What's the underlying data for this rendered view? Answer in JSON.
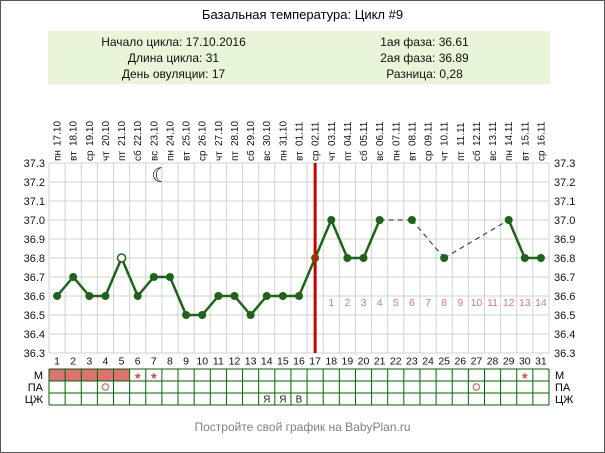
{
  "footer": "Постройте свой график на BabyPlan.ru",
  "info": {
    "left": [
      {
        "label": "Начало цикла:",
        "value": "17.10.2016"
      },
      {
        "label": "Длина цикла:",
        "value": "31"
      },
      {
        "label": "День овуляции:",
        "value": "17"
      }
    ],
    "right": [
      {
        "label": "1ая фаза:",
        "value": "36.61"
      },
      {
        "label": "2ая фаза:",
        "value": "36.89"
      },
      {
        "label": "Разница:",
        "value": "0,28"
      }
    ]
  },
  "colors": {
    "line": "#1b6418",
    "point": "#1b6418",
    "ovulation_point": "#993300",
    "ovulation_line": "#cc0000",
    "dashed_line": "#444444",
    "grid": "#ccd4cc",
    "dpo_text": "#dd7777",
    "m_fill": "#dd7272",
    "star": "#cc5555",
    "pa_circle": "#cc7777",
    "table_border": "#006600",
    "info_bg": "#e9f5d8",
    "axis_text": "#111111",
    "moon": "#111111"
  },
  "chart_data": {
    "type": "line",
    "title": "Базальная температура: Цикл #9",
    "ylabel": "",
    "xlabel": "",
    "ylim": [
      36.3,
      37.3
    ],
    "ytick_step": 0.1,
    "grid": true,
    "ovulation_day": 17,
    "moon": {
      "day": 7.4,
      "symbol": "☾"
    },
    "table_row_labels": [
      "М",
      "ПА",
      "ЦЖ"
    ],
    "days": [
      {
        "num": 1,
        "weekday": "пн",
        "date": "17.10",
        "temp": 36.6,
        "marker": "normal",
        "dpo": null,
        "m_fill": true,
        "m_star": false,
        "pa_circle": false,
        "cj": ""
      },
      {
        "num": 2,
        "weekday": "вт",
        "date": "18.10",
        "temp": 36.7,
        "marker": "normal",
        "dpo": null,
        "m_fill": true,
        "m_star": false,
        "pa_circle": false,
        "cj": ""
      },
      {
        "num": 3,
        "weekday": "ср",
        "date": "19.10",
        "temp": 36.6,
        "marker": "normal",
        "dpo": null,
        "m_fill": true,
        "m_star": false,
        "pa_circle": false,
        "cj": ""
      },
      {
        "num": 4,
        "weekday": "чт",
        "date": "20.10",
        "temp": 36.6,
        "marker": "normal",
        "dpo": null,
        "m_fill": true,
        "m_star": false,
        "pa_circle": true,
        "cj": ""
      },
      {
        "num": 5,
        "weekday": "пт",
        "date": "21.10",
        "temp": 36.8,
        "marker": "open",
        "dpo": null,
        "m_fill": true,
        "m_star": false,
        "pa_circle": false,
        "cj": ""
      },
      {
        "num": 6,
        "weekday": "сб",
        "date": "22.10",
        "temp": 36.6,
        "marker": "normal",
        "dpo": null,
        "m_fill": false,
        "m_star": true,
        "pa_circle": false,
        "cj": ""
      },
      {
        "num": 7,
        "weekday": "вс",
        "date": "23.10",
        "temp": 36.7,
        "marker": "normal",
        "dpo": null,
        "m_fill": false,
        "m_star": true,
        "pa_circle": false,
        "cj": ""
      },
      {
        "num": 8,
        "weekday": "пн",
        "date": "24.10",
        "temp": 36.7,
        "marker": "normal",
        "dpo": null,
        "m_fill": false,
        "m_star": false,
        "pa_circle": false,
        "cj": ""
      },
      {
        "num": 9,
        "weekday": "вт",
        "date": "25.10",
        "temp": 36.5,
        "marker": "normal",
        "dpo": null,
        "m_fill": false,
        "m_star": false,
        "pa_circle": false,
        "cj": ""
      },
      {
        "num": 10,
        "weekday": "ср",
        "date": "26.10",
        "temp": 36.5,
        "marker": "normal",
        "dpo": null,
        "m_fill": false,
        "m_star": false,
        "pa_circle": false,
        "cj": ""
      },
      {
        "num": 11,
        "weekday": "чт",
        "date": "27.10",
        "temp": 36.6,
        "marker": "normal",
        "dpo": null,
        "m_fill": false,
        "m_star": false,
        "pa_circle": false,
        "cj": ""
      },
      {
        "num": 12,
        "weekday": "пт",
        "date": "28.10",
        "temp": 36.6,
        "marker": "normal",
        "dpo": null,
        "m_fill": false,
        "m_star": false,
        "pa_circle": false,
        "cj": ""
      },
      {
        "num": 13,
        "weekday": "сб",
        "date": "29.10",
        "temp": 36.5,
        "marker": "normal",
        "dpo": null,
        "m_fill": false,
        "m_star": false,
        "pa_circle": false,
        "cj": ""
      },
      {
        "num": 14,
        "weekday": "вс",
        "date": "30.10",
        "temp": 36.6,
        "marker": "normal",
        "dpo": null,
        "m_fill": false,
        "m_star": false,
        "pa_circle": false,
        "cj": "Я"
      },
      {
        "num": 15,
        "weekday": "пн",
        "date": "31.10",
        "temp": 36.6,
        "marker": "normal",
        "dpo": null,
        "m_fill": false,
        "m_star": false,
        "pa_circle": false,
        "cj": "Я"
      },
      {
        "num": 16,
        "weekday": "вт",
        "date": "01.11",
        "temp": 36.6,
        "marker": "normal",
        "dpo": null,
        "m_fill": false,
        "m_star": false,
        "pa_circle": false,
        "cj": "В"
      },
      {
        "num": 17,
        "weekday": "ср",
        "date": "02.11",
        "temp": 36.8,
        "marker": "ovulation",
        "dpo": null,
        "m_fill": false,
        "m_star": false,
        "pa_circle": false,
        "cj": ""
      },
      {
        "num": 18,
        "weekday": "чт",
        "date": "03.11",
        "temp": 37.0,
        "marker": "normal",
        "dpo": 1,
        "m_fill": false,
        "m_star": false,
        "pa_circle": false,
        "cj": ""
      },
      {
        "num": 19,
        "weekday": "пт",
        "date": "04.11",
        "temp": 36.8,
        "marker": "normal",
        "dpo": 2,
        "m_fill": false,
        "m_star": false,
        "pa_circle": false,
        "cj": ""
      },
      {
        "num": 20,
        "weekday": "сб",
        "date": "05.11",
        "temp": 36.8,
        "marker": "normal",
        "dpo": 3,
        "m_fill": false,
        "m_star": false,
        "pa_circle": false,
        "cj": ""
      },
      {
        "num": 21,
        "weekday": "вс",
        "date": "06.11",
        "temp": 37.0,
        "marker": "normal",
        "dpo": 4,
        "m_fill": false,
        "m_star": false,
        "pa_circle": false,
        "cj": ""
      },
      {
        "num": 22,
        "weekday": "пн",
        "date": "07.11",
        "temp": null,
        "marker": "none",
        "dpo": 5,
        "m_fill": false,
        "m_star": false,
        "pa_circle": false,
        "cj": ""
      },
      {
        "num": 23,
        "weekday": "вт",
        "date": "08.11",
        "temp": 37.0,
        "marker": "normal",
        "dpo": 6,
        "m_fill": false,
        "m_star": false,
        "pa_circle": false,
        "cj": ""
      },
      {
        "num": 24,
        "weekday": "ср",
        "date": "09.11",
        "temp": null,
        "marker": "none",
        "dpo": 7,
        "m_fill": false,
        "m_star": false,
        "pa_circle": false,
        "cj": ""
      },
      {
        "num": 25,
        "weekday": "чт",
        "date": "10.11",
        "temp": 36.8,
        "marker": "normal",
        "dpo": 8,
        "m_fill": false,
        "m_star": false,
        "pa_circle": false,
        "cj": ""
      },
      {
        "num": 26,
        "weekday": "пт",
        "date": "11.11",
        "temp": null,
        "marker": "none",
        "dpo": 9,
        "m_fill": false,
        "m_star": false,
        "pa_circle": false,
        "cj": ""
      },
      {
        "num": 27,
        "weekday": "сб",
        "date": "12.11",
        "temp": null,
        "marker": "none",
        "dpo": 10,
        "m_fill": false,
        "m_star": false,
        "pa_circle": true,
        "cj": ""
      },
      {
        "num": 28,
        "weekday": "вс",
        "date": "13.11",
        "temp": null,
        "marker": "none",
        "dpo": 11,
        "m_fill": false,
        "m_star": false,
        "pa_circle": false,
        "cj": ""
      },
      {
        "num": 29,
        "weekday": "пн",
        "date": "14.11",
        "temp": 37.0,
        "marker": "normal",
        "dpo": 12,
        "m_fill": false,
        "m_star": false,
        "pa_circle": false,
        "cj": ""
      },
      {
        "num": 30,
        "weekday": "вт",
        "date": "15.11",
        "temp": 36.8,
        "marker": "normal",
        "dpo": 13,
        "m_fill": false,
        "m_star": true,
        "pa_circle": false,
        "cj": ""
      },
      {
        "num": 31,
        "weekday": "ср",
        "date": "16.11",
        "temp": 36.8,
        "marker": "normal",
        "dpo": 14,
        "m_fill": false,
        "m_star": false,
        "pa_circle": false,
        "cj": ""
      }
    ]
  }
}
